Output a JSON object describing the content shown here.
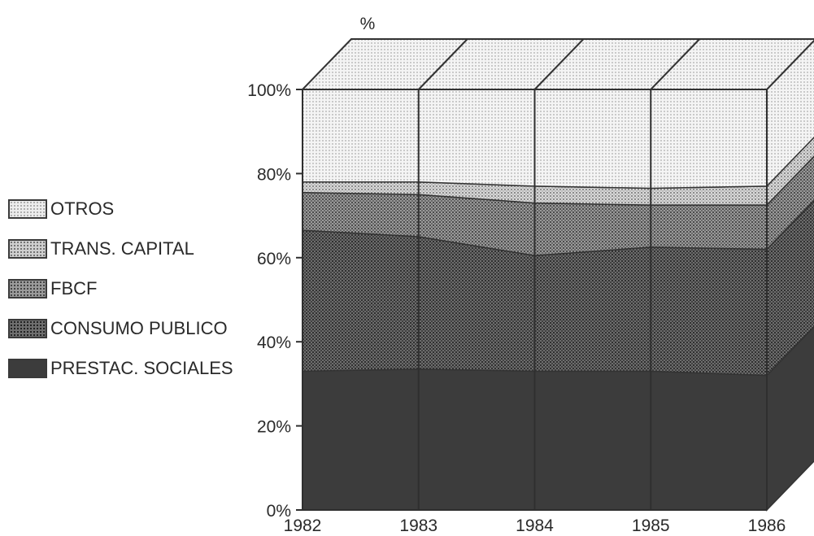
{
  "chart_data": {
    "type": "area",
    "stacked": true,
    "perspective": "3d",
    "ylabel": "%",
    "yticks": [
      "0%",
      "20%",
      "40%",
      "60%",
      "80%",
      "100%"
    ],
    "ylim": [
      0,
      100
    ],
    "x": [
      "1982",
      "1983",
      "1984",
      "1985",
      "1986"
    ],
    "series": [
      {
        "name": "PRESTAC. SOCIALES",
        "values": [
          33,
          33.5,
          33,
          33,
          32
        ],
        "color": "#3c3c3c"
      },
      {
        "name": "CONSUMO PUBLICO",
        "values": [
          33.5,
          31.5,
          27.5,
          29.5,
          30
        ],
        "color": "#666666"
      },
      {
        "name": "FBCF",
        "values": [
          9,
          10,
          12.5,
          10,
          10.5
        ],
        "color": "#8c8c8c"
      },
      {
        "name": "TRANS. CAPITAL",
        "values": [
          2.5,
          3,
          4,
          4,
          4.5
        ],
        "color": "#bdbdbd"
      },
      {
        "name": "OTROS",
        "values": [
          22,
          22,
          23,
          23.5,
          23
        ],
        "color": "#e4e4e4"
      }
    ],
    "legend_order": [
      "OTROS",
      "TRANS. CAPITAL",
      "FBCF",
      "CONSUMO PUBLICO",
      "PRESTAC. SOCIALES"
    ],
    "legend_position": "left"
  }
}
